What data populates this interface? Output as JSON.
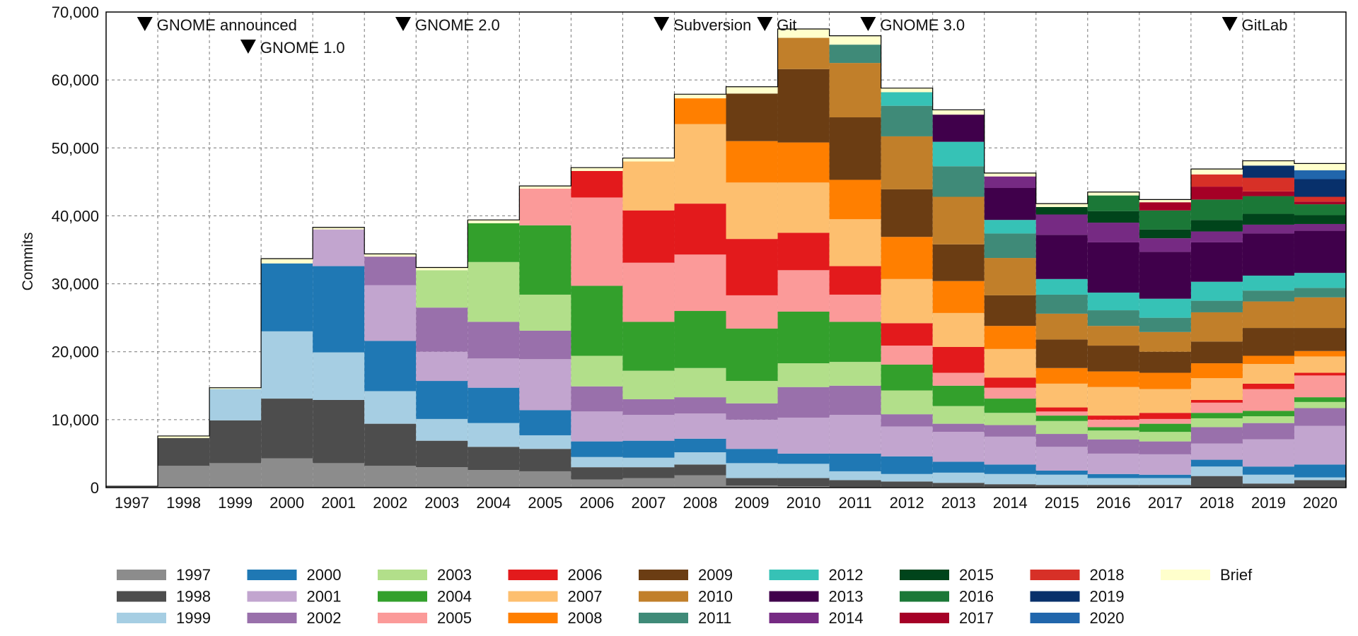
{
  "chart_data": {
    "type": "bar",
    "stacked": true,
    "title": "",
    "xlabel": "",
    "ylabel": "Commits",
    "ylim": [
      0,
      70000
    ],
    "yticks": [
      "0",
      "10,000",
      "20,000",
      "30,000",
      "40,000",
      "50,000",
      "60,000",
      "70,000"
    ],
    "grid": true,
    "legend_position": "bottom",
    "categories": [
      "1997",
      "1998",
      "1999",
      "2000",
      "2001",
      "2002",
      "2003",
      "2004",
      "2005",
      "2006",
      "2007",
      "2008",
      "2009",
      "2010",
      "2011",
      "2012",
      "2013",
      "2014",
      "2015",
      "2016",
      "2017",
      "2018",
      "2019",
      "2020"
    ],
    "series": [
      {
        "name": "1997",
        "color": "#8c8c8c",
        "values": [
          200,
          3200,
          3600,
          4300,
          3600,
          3200,
          3000,
          2600,
          2400,
          1200,
          1400,
          1800,
          300,
          200,
          100,
          100,
          100,
          100,
          100,
          100,
          100,
          100,
          100,
          100
        ]
      },
      {
        "name": "1998",
        "color": "#4d4d4d",
        "values": [
          0,
          4100,
          6300,
          8800,
          9300,
          6200,
          3900,
          3400,
          3300,
          1800,
          1600,
          1600,
          1100,
          1200,
          1000,
          800,
          600,
          400,
          300,
          300,
          300,
          1600,
          500,
          1000
        ]
      },
      {
        "name": "1999",
        "color": "#a6cee3",
        "values": [
          0,
          0,
          4600,
          9900,
          7000,
          4800,
          3200,
          3500,
          2000,
          1500,
          1400,
          1800,
          2200,
          2100,
          1300,
          1100,
          1500,
          1500,
          1500,
          1000,
          1000,
          1400,
          1300,
          400
        ]
      },
      {
        "name": "2000",
        "color": "#1f78b4",
        "values": [
          0,
          0,
          0,
          10000,
          12700,
          7400,
          5600,
          5200,
          3700,
          2300,
          2500,
          2000,
          2100,
          1500,
          2600,
          2600,
          1600,
          1400,
          600,
          600,
          500,
          1000,
          1200,
          1900
        ]
      },
      {
        "name": "2001",
        "color": "#c2a5cf",
        "values": [
          0,
          0,
          0,
          0,
          5400,
          8200,
          4300,
          4300,
          7500,
          4400,
          3800,
          3700,
          4300,
          5300,
          5700,
          4400,
          4400,
          4100,
          3500,
          3000,
          3000,
          2400,
          4000,
          5700
        ]
      },
      {
        "name": "2002",
        "color": "#9970ab",
        "values": [
          0,
          0,
          0,
          0,
          0,
          4200,
          6500,
          5400,
          4200,
          3700,
          2300,
          2400,
          2400,
          4500,
          4300,
          1800,
          1200,
          1700,
          1900,
          2100,
          1900,
          2400,
          2400,
          2600
        ]
      },
      {
        "name": "2003",
        "color": "#b2df8a",
        "values": [
          0,
          0,
          0,
          0,
          0,
          0,
          5500,
          8800,
          5300,
          4500,
          4200,
          4300,
          3300,
          3500,
          3500,
          3500,
          2600,
          1800,
          1900,
          1300,
          1400,
          1300,
          1000,
          900
        ]
      },
      {
        "name": "2004",
        "color": "#33a02c",
        "values": [
          0,
          0,
          0,
          0,
          0,
          0,
          0,
          5700,
          10200,
          10300,
          7200,
          8400,
          7700,
          7600,
          5900,
          3800,
          3000,
          2100,
          800,
          500,
          1200,
          800,
          800,
          700
        ]
      },
      {
        "name": "2005",
        "color": "#fb9a99",
        "values": [
          0,
          0,
          0,
          0,
          0,
          0,
          0,
          0,
          5400,
          13000,
          8700,
          8300,
          4900,
          6100,
          4000,
          2800,
          1900,
          1600,
          600,
          1100,
          700,
          1500,
          3200,
          3200
        ]
      },
      {
        "name": "2006",
        "color": "#e31a1c",
        "values": [
          0,
          0,
          0,
          0,
          0,
          0,
          0,
          0,
          0,
          3900,
          7700,
          7500,
          8300,
          5500,
          4200,
          3300,
          3800,
          1500,
          600,
          600,
          900,
          400,
          800,
          400
        ]
      },
      {
        "name": "2007",
        "color": "#fdbf6f",
        "values": [
          0,
          0,
          0,
          0,
          0,
          0,
          0,
          0,
          0,
          0,
          7200,
          11700,
          8300,
          7400,
          6900,
          6500,
          5000,
          4200,
          3500,
          4200,
          3500,
          3200,
          2900,
          2400
        ]
      },
      {
        "name": "2008",
        "color": "#ff7f00",
        "values": [
          0,
          0,
          0,
          0,
          0,
          0,
          0,
          0,
          0,
          0,
          0,
          3800,
          6100,
          5900,
          5800,
          6200,
          4700,
          3400,
          2300,
          2300,
          2400,
          2200,
          1200,
          800
        ]
      },
      {
        "name": "2009",
        "color": "#6b3d13",
        "values": [
          0,
          0,
          0,
          0,
          0,
          0,
          0,
          0,
          0,
          0,
          0,
          0,
          7000,
          10800,
          9200,
          7000,
          5400,
          4500,
          4200,
          3800,
          3100,
          3200,
          4100,
          3400
        ]
      },
      {
        "name": "2010",
        "color": "#c17f2a",
        "values": [
          0,
          0,
          0,
          0,
          0,
          0,
          0,
          0,
          0,
          0,
          0,
          0,
          0,
          4600,
          8000,
          7800,
          7000,
          5500,
          3800,
          2900,
          2900,
          4300,
          3900,
          4500
        ]
      },
      {
        "name": "2011",
        "color": "#3f8a78",
        "values": [
          0,
          0,
          0,
          0,
          0,
          0,
          0,
          0,
          0,
          0,
          0,
          0,
          0,
          0,
          2700,
          4500,
          4500,
          3600,
          2800,
          2300,
          2100,
          1700,
          1600,
          1400
        ]
      },
      {
        "name": "2012",
        "color": "#36c2b6",
        "values": [
          0,
          0,
          0,
          0,
          0,
          0,
          0,
          0,
          0,
          0,
          0,
          0,
          0,
          0,
          0,
          2000,
          3600,
          2000,
          2300,
          2600,
          2800,
          2800,
          2200,
          2200
        ]
      },
      {
        "name": "2013",
        "color": "#40004b",
        "values": [
          0,
          0,
          0,
          0,
          0,
          0,
          0,
          0,
          0,
          0,
          0,
          0,
          0,
          0,
          0,
          0,
          4000,
          4700,
          6500,
          7400,
          6900,
          5800,
          6200,
          6200
        ]
      },
      {
        "name": "2014",
        "color": "#762a83",
        "values": [
          0,
          0,
          0,
          0,
          0,
          0,
          0,
          0,
          0,
          0,
          0,
          0,
          0,
          0,
          0,
          0,
          0,
          1700,
          3000,
          2900,
          2000,
          1600,
          1300,
          1000
        ]
      },
      {
        "name": "2015",
        "color": "#00441b",
        "values": [
          0,
          0,
          0,
          0,
          0,
          0,
          0,
          0,
          0,
          0,
          0,
          0,
          0,
          0,
          0,
          0,
          0,
          0,
          1100,
          1700,
          1300,
          1700,
          1600,
          1300
        ]
      },
      {
        "name": "2016",
        "color": "#1b7837",
        "values": [
          0,
          0,
          0,
          0,
          0,
          0,
          0,
          0,
          0,
          0,
          0,
          0,
          0,
          0,
          0,
          0,
          0,
          0,
          0,
          2300,
          2800,
          3000,
          2600,
          1600
        ]
      },
      {
        "name": "2017",
        "color": "#a50026",
        "values": [
          0,
          0,
          0,
          0,
          0,
          0,
          0,
          0,
          0,
          0,
          0,
          0,
          0,
          0,
          0,
          0,
          0,
          0,
          0,
          0,
          1200,
          1900,
          700,
          400
        ]
      },
      {
        "name": "2018",
        "color": "#d73027",
        "values": [
          0,
          0,
          0,
          0,
          0,
          0,
          0,
          0,
          0,
          0,
          0,
          0,
          0,
          0,
          0,
          0,
          0,
          0,
          0,
          0,
          0,
          1800,
          2000,
          700
        ]
      },
      {
        "name": "2019",
        "color": "#08306b",
        "values": [
          0,
          0,
          0,
          0,
          0,
          0,
          0,
          0,
          0,
          0,
          0,
          0,
          0,
          0,
          0,
          0,
          0,
          0,
          0,
          0,
          0,
          0,
          1800,
          2600
        ]
      },
      {
        "name": "2020",
        "color": "#2166ac",
        "values": [
          0,
          0,
          0,
          0,
          0,
          0,
          0,
          0,
          0,
          0,
          0,
          0,
          0,
          0,
          0,
          0,
          0,
          0,
          0,
          0,
          0,
          0,
          0,
          1300
        ]
      },
      {
        "name": "Brief",
        "color": "#ffffcc",
        "values": [
          0,
          300,
          200,
          700,
          300,
          400,
          400,
          500,
          400,
          500,
          500,
          600,
          1000,
          1300,
          1300,
          600,
          700,
          500,
          500,
          500,
          400,
          800,
          700,
          1000
        ]
      }
    ],
    "annotations": [
      {
        "label": "GNOME announced",
        "x": "1997",
        "row": 1
      },
      {
        "label": "GNOME 1.0",
        "x": "1999",
        "row": 2
      },
      {
        "label": "GNOME 2.0",
        "x": "2002",
        "row": 1
      },
      {
        "label": "Subversion",
        "x": "2007",
        "row": 1
      },
      {
        "label": "Git",
        "x": "2009",
        "row": 1
      },
      {
        "label": "GNOME 3.0",
        "x": "2011",
        "row": 1
      },
      {
        "label": "GitLab",
        "x": "2018",
        "row": 1
      }
    ]
  }
}
